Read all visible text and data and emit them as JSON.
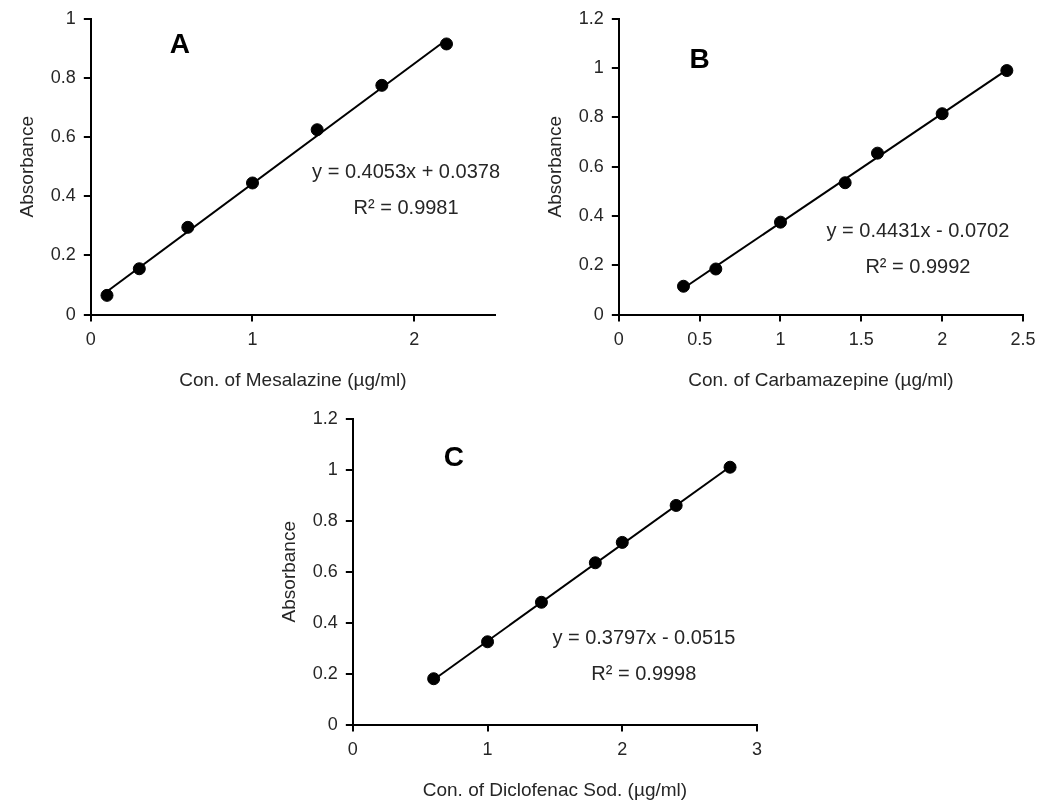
{
  "chart_data": [
    {
      "type": "scatter",
      "title": "A",
      "xlabel": "Con. of Mesalazine (µg/ml)",
      "ylabel": "Absorbance",
      "series": [
        {
          "color": "#000000",
          "marker": "circle",
          "x": [
            0.1,
            0.3,
            0.6,
            1,
            1.4,
            1.8,
            2.2
          ],
          "values": [
            0.065,
            0.155,
            0.295,
            0.445,
            0.625,
            0.775,
            0.915
          ]
        },
        {
          "type": "line",
          "marker": "none",
          "color": "#000000",
          "x": [
            0.1,
            2.2
          ],
          "values": [
            0.078,
            0.929
          ]
        }
      ],
      "xlim": [
        0,
        2.5
      ],
      "xticks": [
        0,
        1,
        2
      ],
      "ylim": [
        0,
        1
      ],
      "yticks": [
        0,
        0.2,
        0.4,
        0.6,
        0.8,
        1
      ],
      "annotations": [
        "y = 0.4053x + 0.0378",
        "R² = 0.9981"
      ],
      "grid": false,
      "legend": false
    },
    {
      "type": "scatter",
      "title": "B",
      "xlabel": "Con. of Carbamazepine (µg/ml)",
      "ylabel": "Absorbance",
      "series": [
        {
          "color": "#000000",
          "marker": "circle",
          "x": [
            0.4,
            0.6,
            1,
            1.4,
            1.6,
            2,
            2.4
          ],
          "values": [
            0.115,
            0.185,
            0.375,
            0.535,
            0.655,
            0.815,
            0.99
          ]
        },
        {
          "type": "line",
          "marker": "none",
          "color": "#000000",
          "x": [
            0.4,
            2.4
          ],
          "values": [
            0.107,
            0.993
          ]
        }
      ],
      "xlim": [
        0,
        2.5
      ],
      "xticks": [
        0,
        0.5,
        1,
        1.5,
        2,
        2.5
      ],
      "ylim": [
        0,
        1.2
      ],
      "yticks": [
        0,
        0.2,
        0.4,
        0.6,
        0.8,
        1,
        1.2
      ],
      "annotations": [
        "y = 0.4431x - 0.0702",
        "R² = 0.9992"
      ],
      "grid": false,
      "legend": false
    },
    {
      "type": "scatter",
      "title": "C",
      "xlabel": "Con. of Diclofenac Sod. (µg/ml)",
      "ylabel": "Absorbance",
      "series": [
        {
          "color": "#000000",
          "marker": "circle",
          "x": [
            0.6,
            1,
            1.4,
            1.8,
            2,
            2.4,
            2.8
          ],
          "values": [
            0.18,
            0.325,
            0.48,
            0.635,
            0.715,
            0.86,
            1.01
          ]
        },
        {
          "type": "line",
          "marker": "none",
          "color": "#000000",
          "x": [
            0.6,
            2.8
          ],
          "values": [
            0.176,
            1.012
          ]
        }
      ],
      "xlim": [
        0,
        3
      ],
      "xticks": [
        0,
        1,
        2,
        3
      ],
      "ylim": [
        0,
        1.2
      ],
      "yticks": [
        0,
        0.2,
        0.4,
        0.6,
        0.8,
        1,
        1.2
      ],
      "annotations": [
        "y = 0.3797x - 0.0515",
        "R² = 0.9998"
      ],
      "grid": false,
      "legend": false
    }
  ]
}
